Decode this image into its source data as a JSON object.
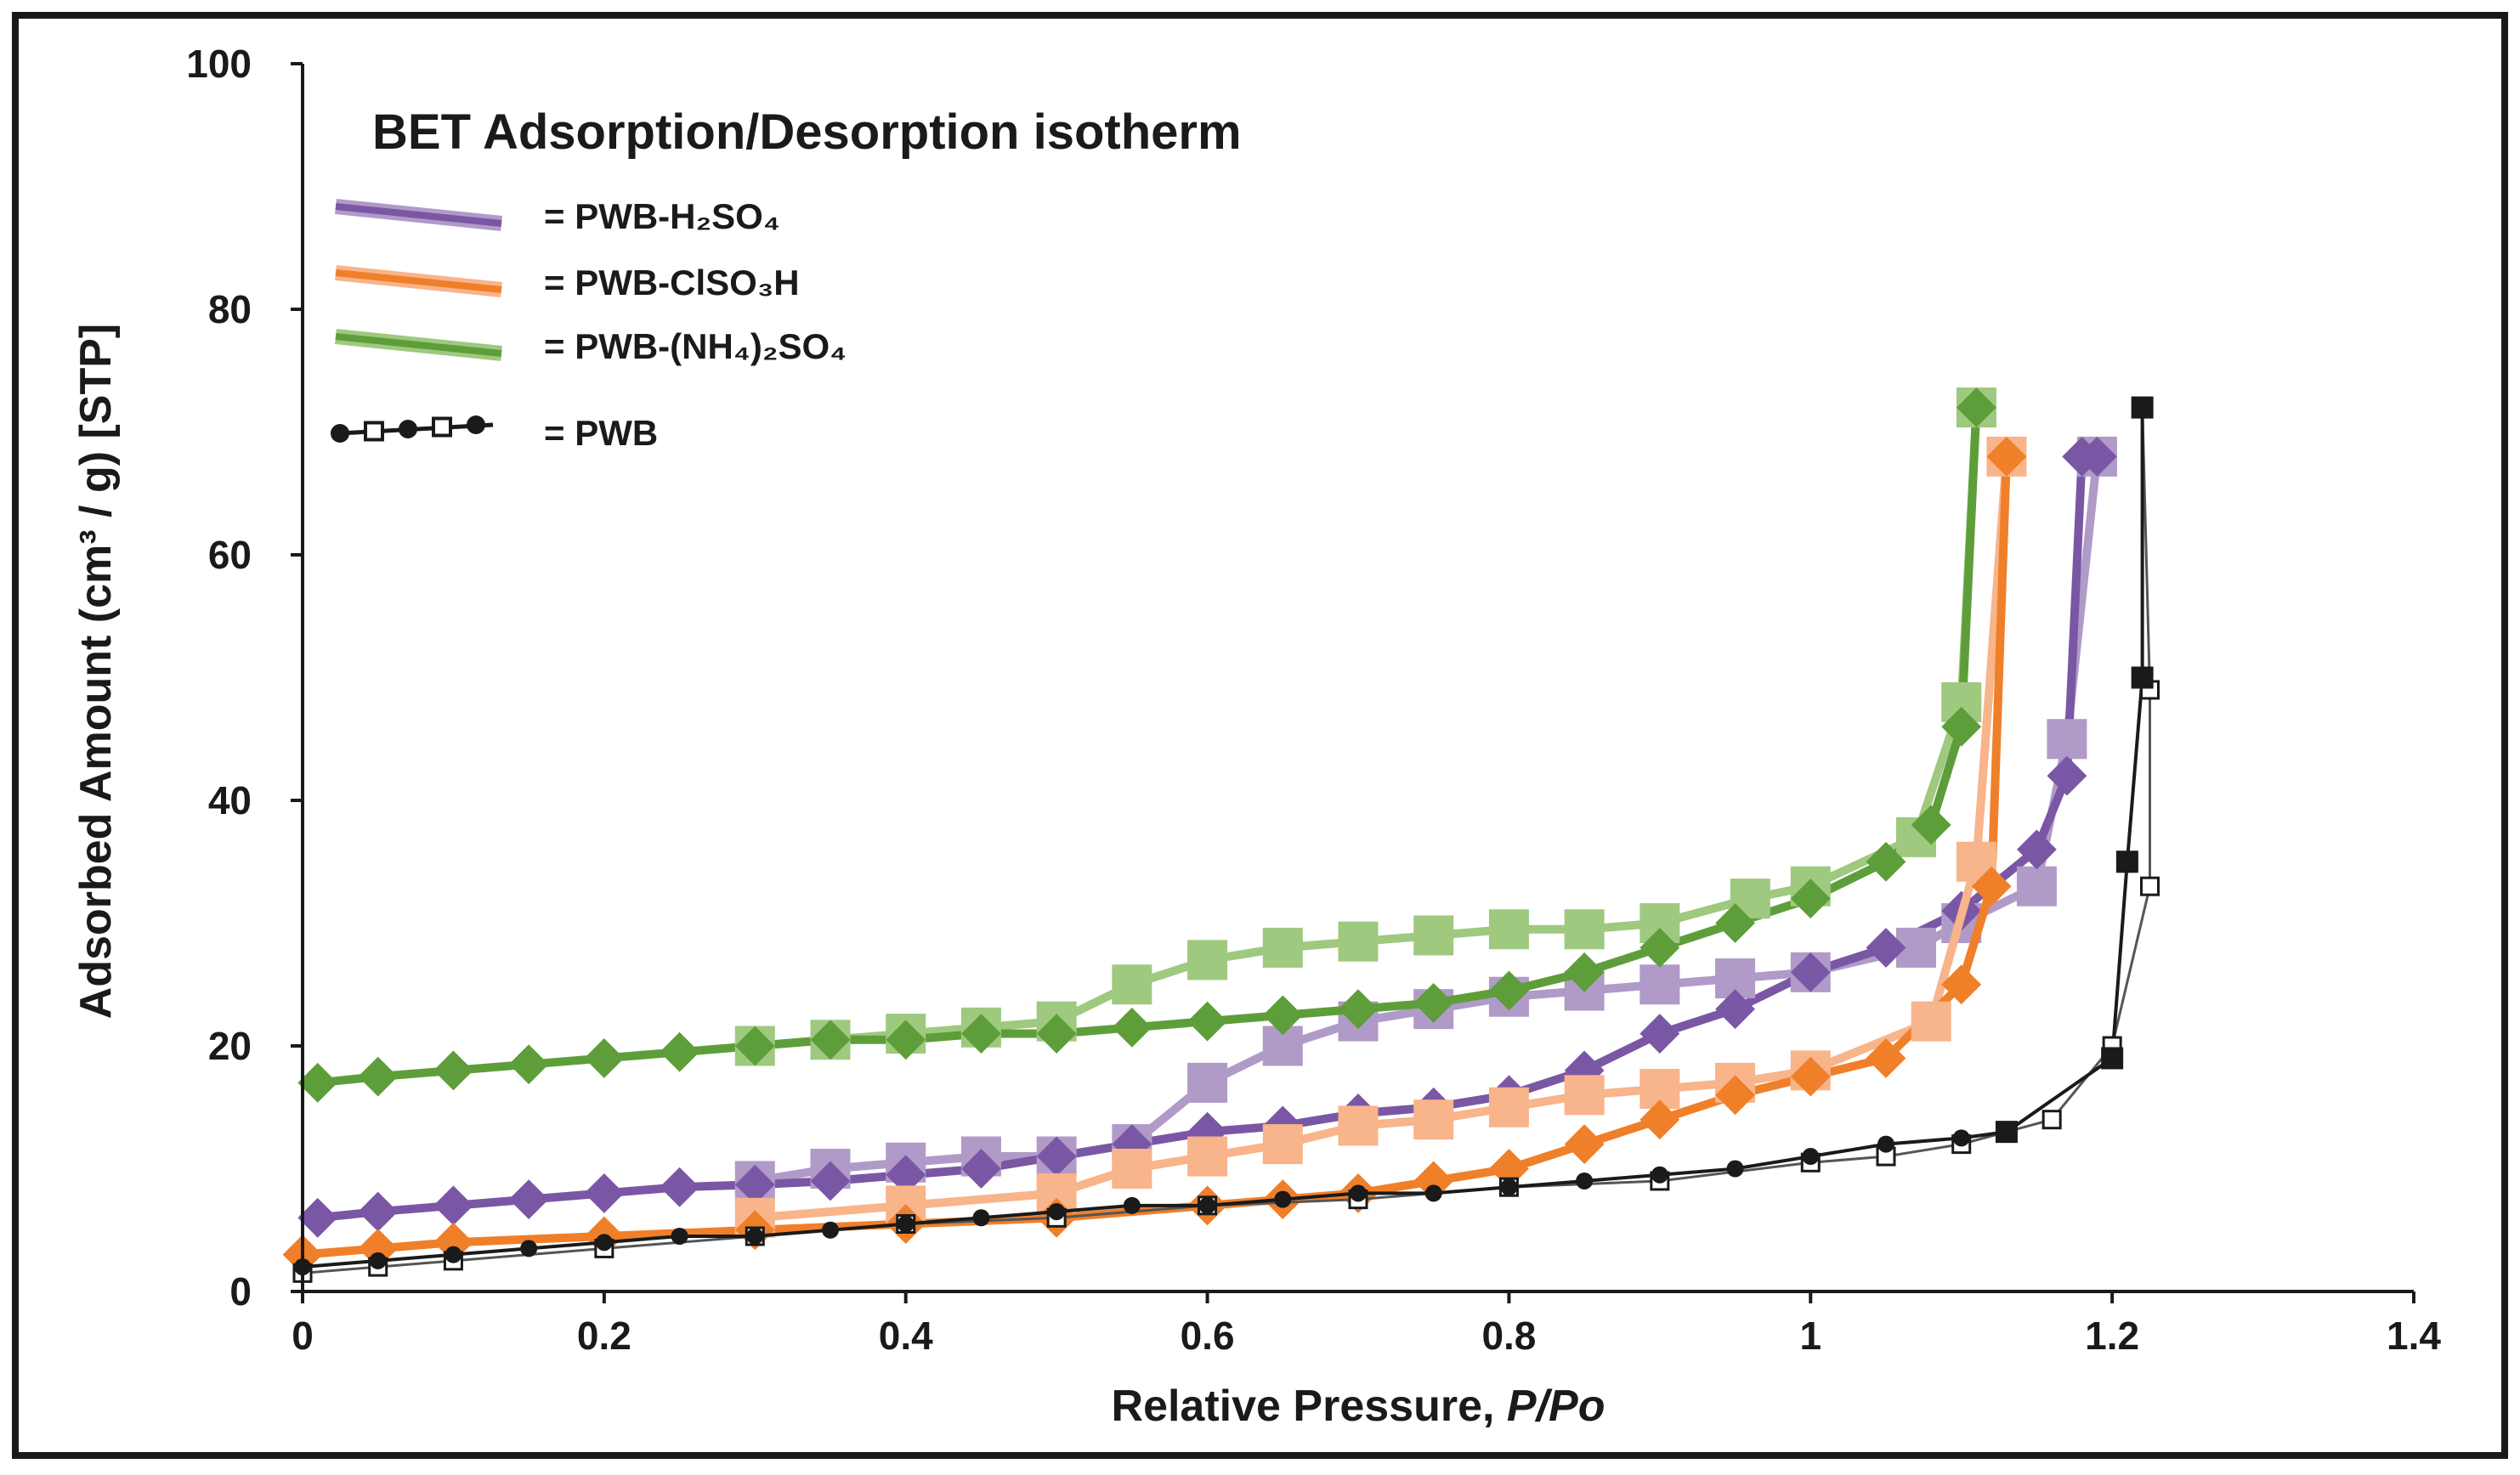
{
  "chart_data": {
    "type": "line",
    "title": "BET Adsorption/Desorption isotherm",
    "xlabel": "Relative Pressure, ",
    "xlabel_italic": "P/Po",
    "ylabel": "Adsorbed Amount (cm³ / g)  [STP]",
    "xlim": [
      0,
      1.4
    ],
    "ylim": [
      0,
      100
    ],
    "xticks": [
      "0",
      "0.2",
      "0.4",
      "0.6",
      "0.8",
      "1",
      "1.2",
      "1.4"
    ],
    "xtick_values": [
      0,
      0.2,
      0.4,
      0.6,
      0.8,
      1.0,
      1.2,
      1.4
    ],
    "yticks": [
      "0",
      "20",
      "40",
      "60",
      "80",
      "100"
    ],
    "ytick_values": [
      0,
      20,
      40,
      60,
      80,
      100
    ],
    "legend_position": "top-left",
    "series": [
      {
        "name": "= PWB-H₂SO₄",
        "color": "#7a57a4",
        "light_color": "#b09ac8",
        "adsorption": {
          "x": [
            0.01,
            0.05,
            0.1,
            0.15,
            0.2,
            0.25,
            0.3,
            0.35,
            0.4,
            0.45,
            0.5,
            0.55,
            0.6,
            0.65,
            0.7,
            0.75,
            0.8,
            0.85,
            0.9,
            0.95,
            1.0,
            1.05,
            1.1,
            1.15,
            1.17,
            1.18,
            1.19
          ],
          "y": [
            6,
            6.5,
            7,
            7.5,
            8,
            8.5,
            8.7,
            9,
            9.5,
            10,
            11,
            12,
            13,
            13.5,
            14.5,
            15,
            16,
            18,
            21,
            23,
            26,
            28,
            31,
            36,
            42,
            68,
            68
          ]
        },
        "desorption": {
          "x": [
            1.19,
            1.17,
            1.15,
            1.1,
            1.07,
            1.0,
            0.95,
            0.9,
            0.85,
            0.8,
            0.75,
            0.7,
            0.65,
            0.6,
            0.55,
            0.5,
            0.45,
            0.4,
            0.35,
            0.3
          ],
          "y": [
            68,
            45,
            33,
            30,
            28,
            26,
            25.5,
            25,
            24.5,
            24,
            23,
            22,
            20,
            17,
            12,
            11,
            11,
            10.5,
            10,
            9
          ]
        }
      },
      {
        "name": "= PWB-ClSO₃H",
        "color": "#f07f2a",
        "light_color": "#f8b48a",
        "adsorption": {
          "x": [
            0.0,
            0.05,
            0.1,
            0.2,
            0.3,
            0.4,
            0.5,
            0.6,
            0.65,
            0.7,
            0.75,
            0.8,
            0.85,
            0.9,
            0.95,
            1.0,
            1.05,
            1.1,
            1.12,
            1.13
          ],
          "y": [
            3,
            3.5,
            4,
            4.5,
            5,
            5.5,
            6,
            7,
            7.5,
            8,
            9,
            10,
            12,
            14,
            16,
            17.5,
            19,
            25,
            33,
            68
          ]
        },
        "desorption": {
          "x": [
            1.13,
            1.11,
            1.08,
            1.0,
            0.95,
            0.9,
            0.85,
            0.8,
            0.75,
            0.7,
            0.65,
            0.6,
            0.55,
            0.5,
            0.4,
            0.3
          ],
          "y": [
            68,
            35,
            22,
            18,
            17,
            16.5,
            16,
            15,
            14,
            13.5,
            12,
            11,
            10,
            8,
            7,
            6
          ]
        }
      },
      {
        "name": "= PWB-(NH₄)₂SO₄",
        "color": "#5e9e3a",
        "light_color": "#9ec97f",
        "adsorption": {
          "x": [
            0.01,
            0.05,
            0.1,
            0.15,
            0.2,
            0.25,
            0.3,
            0.35,
            0.4,
            0.45,
            0.5,
            0.55,
            0.6,
            0.65,
            0.7,
            0.75,
            0.8,
            0.85,
            0.9,
            0.95,
            1.0,
            1.05,
            1.08,
            1.1,
            1.11
          ],
          "y": [
            17,
            17.5,
            18,
            18.5,
            19,
            19.5,
            20,
            20.5,
            20.5,
            21,
            21,
            21.5,
            22,
            22.5,
            23,
            23.5,
            24.5,
            26,
            28,
            30,
            32,
            35,
            38,
            46,
            72
          ]
        },
        "desorption": {
          "x": [
            1.11,
            1.1,
            1.07,
            1.0,
            0.96,
            0.9,
            0.85,
            0.8,
            0.75,
            0.7,
            0.65,
            0.6,
            0.55,
            0.5,
            0.45,
            0.4,
            0.35,
            0.3
          ],
          "y": [
            72,
            48,
            37,
            33,
            32,
            30,
            29.5,
            29.5,
            29,
            28.5,
            28,
            27,
            25,
            22,
            21.5,
            21,
            20.5,
            20
          ]
        }
      },
      {
        "name": "= PWB",
        "color": "#1a1a1a",
        "light_color": "#ffffff",
        "adsorption": {
          "x": [
            0.0,
            0.05,
            0.1,
            0.15,
            0.2,
            0.25,
            0.3,
            0.35,
            0.4,
            0.45,
            0.5,
            0.55,
            0.6,
            0.65,
            0.7,
            0.75,
            0.8,
            0.85,
            0.9,
            0.95,
            1.0,
            1.05,
            1.1,
            1.13,
            1.2,
            1.21,
            1.22,
            1.22
          ],
          "y": [
            2,
            2.5,
            3,
            3.5,
            4,
            4.5,
            4.5,
            5,
            5.5,
            6,
            6.5,
            7,
            7,
            7.5,
            8,
            8,
            8.5,
            9,
            9.5,
            10,
            11,
            12,
            12.5,
            13,
            19,
            35,
            50,
            72
          ]
        },
        "desorption": {
          "x": [
            1.22,
            1.225,
            1.225,
            1.2,
            1.16,
            1.1,
            1.05,
            1.0,
            0.9,
            0.8,
            0.7,
            0.6,
            0.5,
            0.4,
            0.3,
            0.2,
            0.1,
            0.05,
            0.0
          ],
          "y": [
            72,
            49,
            33,
            20,
            14,
            12,
            11,
            10.5,
            9,
            8.5,
            7.5,
            7,
            6,
            5.5,
            4.5,
            3.5,
            2.5,
            2,
            1.5
          ]
        }
      }
    ]
  }
}
